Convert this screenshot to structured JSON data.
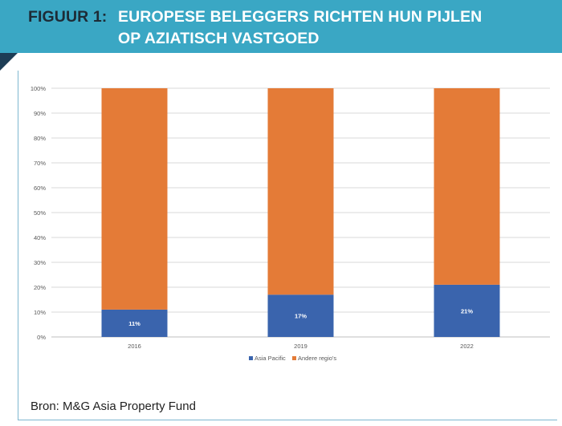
{
  "header": {
    "figure_label": "FIGUUR 1:",
    "title_line1": "EUROPESE BELEGGERS RICHTEN HUN PIJLEN",
    "title_line2": "OP AZIATISCH VASTGOED"
  },
  "source_text": "Bron: M&G Asia Property Fund",
  "colors": {
    "banner": "#3aa7c4",
    "asia_pacific": "#3a64ad",
    "andere_regios": "#e47b37"
  },
  "chart_data": {
    "type": "bar",
    "stacked": true,
    "categories": [
      "2016",
      "2019",
      "2022"
    ],
    "series": [
      {
        "name": "Asia Pacific",
        "values": [
          11,
          17,
          21
        ],
        "labels": [
          "11%",
          "17%",
          "21%"
        ]
      },
      {
        "name": "Andere regio's",
        "values": [
          89,
          83,
          79
        ]
      }
    ],
    "yticks": [
      "0%",
      "10%",
      "20%",
      "30%",
      "40%",
      "50%",
      "60%",
      "70%",
      "80%",
      "90%",
      "100%"
    ],
    "ylim": [
      0,
      100
    ],
    "grid": true,
    "legend": "bottom"
  }
}
